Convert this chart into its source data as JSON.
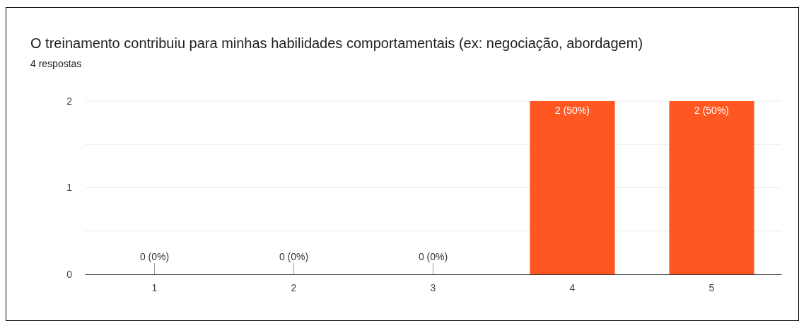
{
  "chart_data": {
    "type": "bar",
    "title": "O treinamento contribuiu para minhas habilidades comportamentais (ex: negociação, abordagem)",
    "subtitle": "4 respostas",
    "categories": [
      "1",
      "2",
      "3",
      "4",
      "5"
    ],
    "values": [
      0,
      0,
      0,
      2,
      2
    ],
    "value_labels": [
      "0 (0%)",
      "0 (0%)",
      "0 (0%)",
      "2 (50%)",
      "2 (50%)"
    ],
    "color": "#ff5722",
    "ylim": [
      0,
      2
    ],
    "yticks": [
      0,
      {
        "value": 0.5,
        "label": null
      },
      1,
      {
        "value": 1.5,
        "label": null
      },
      2
    ],
    "grid": true
  }
}
